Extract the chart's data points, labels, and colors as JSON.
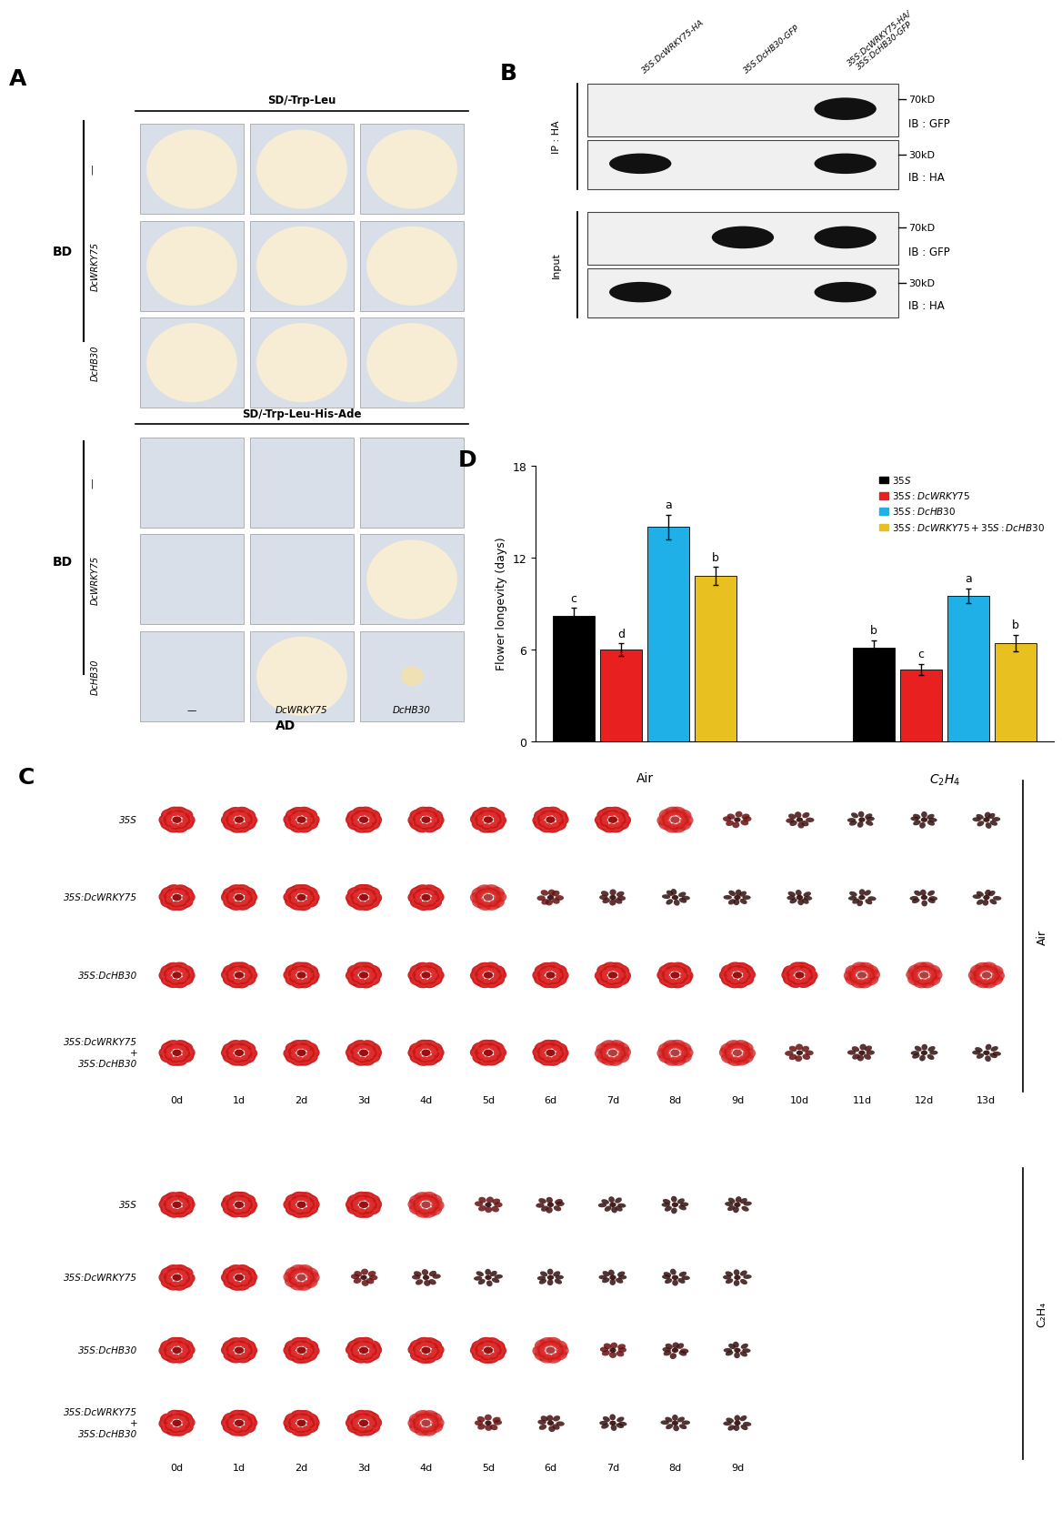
{
  "fig_width": 12.0,
  "fig_height": 16.24,
  "background_color": "#ffffff",
  "A_top_title": "SD/-Trp-Leu",
  "A_bottom_title": "SD/-Trp-Leu-His-Ade",
  "A_BD_label": "BD",
  "A_AD_label": "AD",
  "A_BD_rows": [
    "|",
    "DcWRKY75",
    "DcHB30"
  ],
  "A_AD_cols": [
    "—",
    "DcWRKY75",
    "DcHB30"
  ],
  "B_col_labels": [
    "35S:DcWRKY75-HA",
    "35S:DcHB30-GFP",
    "35S:DcWRKY75-HA/\n35S:DcHB30-GFP"
  ],
  "B_blots": [
    {
      "band_lanes": [
        2
      ],
      "kd": "70kD",
      "ib": "IB : GFP",
      "section": "IP : HA"
    },
    {
      "band_lanes": [
        0,
        2
      ],
      "kd": "30kD",
      "ib": "IB : HA",
      "section": "IP : HA"
    },
    {
      "band_lanes": [
        1,
        2
      ],
      "kd": "70kD",
      "ib": "IB : GFP",
      "section": "Input"
    },
    {
      "band_lanes": [
        0,
        2
      ],
      "kd": "30kD",
      "ib": "IB : HA",
      "section": "Input"
    }
  ],
  "D_colors": [
    "#000000",
    "#e82020",
    "#20b0e8",
    "#e8c020"
  ],
  "D_values_air": [
    8.2,
    6.0,
    14.0,
    10.8
  ],
  "D_errors_air": [
    0.5,
    0.4,
    0.8,
    0.6
  ],
  "D_values_c2h4": [
    6.1,
    4.7,
    9.5,
    6.4
  ],
  "D_errors_c2h4": [
    0.5,
    0.35,
    0.5,
    0.55
  ],
  "D_letters_air": [
    "c",
    "d",
    "a",
    "b"
  ],
  "D_letters_c2h4": [
    "b",
    "c",
    "a",
    "b"
  ],
  "D_ylabel": "Flower longevity (days)",
  "D_ylim": [
    0,
    18
  ],
  "D_yticks": [
    0,
    6,
    12,
    18
  ],
  "D_legend": [
    "35S",
    "35S:DcWRKY75",
    "35S:DcHB30",
    "35S:DcWRKY75+35S:DcHB30"
  ],
  "C_air_rows": 4,
  "C_air_cols": 14,
  "C_c2h4_rows": 4,
  "C_c2h4_cols": 10,
  "C_air_row_labels": [
    "35S",
    "35S:DcWRKY75",
    "35S:DcHB30",
    "35S:DcWRKY75\n+\n35S:DcHB30"
  ],
  "C_air_col_labels": [
    "0d",
    "1d",
    "2d",
    "3d",
    "4d",
    "5d",
    "6d",
    "7d",
    "8d",
    "9d",
    "10d",
    "11d",
    "12d",
    "13d"
  ],
  "C_c2h4_row_labels": [
    "35S",
    "35S:DcWRKY75",
    "35S:DcHB30",
    "35S:DcWRKY75\n+\n35S:DcHB30"
  ],
  "C_c2h4_col_labels": [
    "0d",
    "1d",
    "2d",
    "3d",
    "4d",
    "5d",
    "6d",
    "7d",
    "8d",
    "9d"
  ],
  "C_air_label": "Air",
  "C_c2h4_label": "C₂H₄"
}
